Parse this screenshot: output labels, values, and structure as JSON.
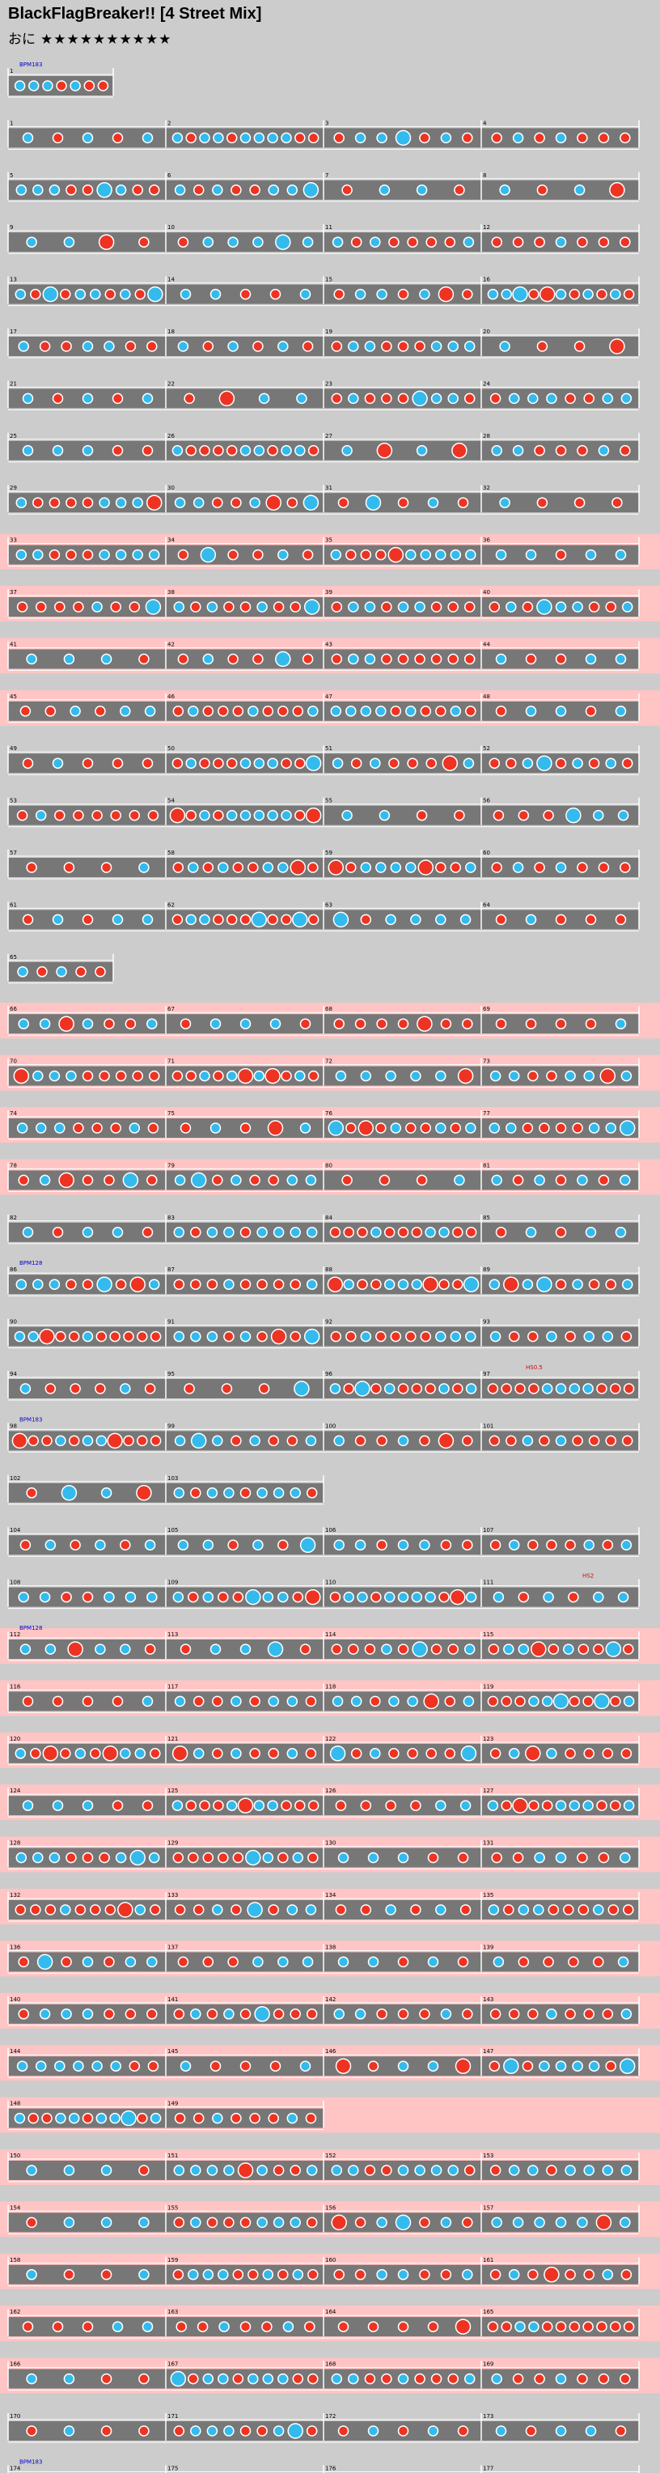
{
  "title": "BlackFlagBreaker!! [4 Street Mix]",
  "difficulty": {
    "label": "おに",
    "stars": "★★★★★★★★★★"
  },
  "colors": {
    "background": "#cccccc",
    "lane": "#777777",
    "lane_go_go": "#ffc4c4",
    "don": "#ee3322",
    "ka": "#33bbee",
    "marker_blue": "#0000cc",
    "marker_red": "#dd0000"
  },
  "bpm_markers": [
    {
      "label": "BPM183",
      "row": 0
    },
    {
      "label": "BPM128",
      "row": 23
    },
    {
      "label": "BPM183",
      "row": 26
    },
    {
      "label": "BPM128",
      "row": 30
    },
    {
      "label": "BPM183",
      "row": 46
    }
  ],
  "annotations": [
    {
      "label": "HS0.5",
      "row": 25
    },
    {
      "label": "HS2",
      "row": 29
    }
  ],
  "rows": [
    {
      "measures": [
        1
      ],
      "gogo": false,
      "short": true
    },
    {
      "measures": [
        1,
        2,
        3,
        4
      ],
      "gogo": false
    },
    {
      "measures": [
        5,
        6,
        7,
        8
      ],
      "gogo": false
    },
    {
      "measures": [
        9,
        10,
        11,
        12
      ],
      "gogo": false
    },
    {
      "measures": [
        13,
        14,
        15,
        16
      ],
      "gogo": false
    },
    {
      "measures": [
        17,
        18,
        19,
        20
      ],
      "gogo": false
    },
    {
      "measures": [
        21,
        22,
        23,
        24
      ],
      "gogo": false
    },
    {
      "measures": [
        25,
        26,
        27,
        28
      ],
      "gogo": false
    },
    {
      "measures": [
        29,
        30,
        31,
        32
      ],
      "gogo": false
    },
    {
      "measures": [
        33,
        34,
        35,
        36
      ],
      "gogo": true
    },
    {
      "measures": [
        37,
        38,
        39,
        40
      ],
      "gogo": true
    },
    {
      "measures": [
        41,
        42,
        43,
        44
      ],
      "gogo": true
    },
    {
      "measures": [
        45,
        46,
        47,
        48
      ],
      "gogo": true
    },
    {
      "measures": [
        49,
        50,
        51,
        52
      ],
      "gogo": false
    },
    {
      "measures": [
        53,
        54,
        55,
        56
      ],
      "gogo": false
    },
    {
      "measures": [
        57,
        58,
        59,
        60
      ],
      "gogo": false
    },
    {
      "measures": [
        61,
        62,
        63,
        64
      ],
      "gogo": false
    },
    {
      "measures": [
        65
      ],
      "gogo": false,
      "short": true
    },
    {
      "measures": [
        66,
        67,
        68,
        69
      ],
      "gogo": true
    },
    {
      "measures": [
        70,
        71,
        72,
        73
      ],
      "gogo": true
    },
    {
      "measures": [
        74,
        75,
        76,
        77
      ],
      "gogo": true
    },
    {
      "measures": [
        78,
        79,
        80,
        81
      ],
      "gogo": true
    },
    {
      "measures": [
        82,
        83,
        84,
        85
      ],
      "gogo": false
    },
    {
      "measures": [
        86,
        87,
        88,
        89
      ],
      "gogo": false
    },
    {
      "measures": [
        90,
        91,
        92,
        93
      ],
      "gogo": false
    },
    {
      "measures": [
        94,
        95,
        96,
        97
      ],
      "gogo": false
    },
    {
      "measures": [
        98,
        99,
        100,
        101
      ],
      "gogo": false
    },
    {
      "measures": [
        102,
        103
      ],
      "gogo": false,
      "short": true
    },
    {
      "measures": [
        104,
        105,
        106,
        107
      ],
      "gogo": false
    },
    {
      "measures": [
        108,
        109,
        110,
        111
      ],
      "gogo": false
    },
    {
      "measures": [
        112,
        113,
        114,
        115
      ],
      "gogo": true
    },
    {
      "measures": [
        116,
        117,
        118,
        119
      ],
      "gogo": true
    },
    {
      "measures": [
        120,
        121,
        122,
        123
      ],
      "gogo": true
    },
    {
      "measures": [
        124,
        125,
        126,
        127
      ],
      "gogo": true
    },
    {
      "measures": [
        128,
        129,
        130,
        131
      ],
      "gogo": true
    },
    {
      "measures": [
        132,
        133,
        134,
        135
      ],
      "gogo": true
    },
    {
      "measures": [
        136,
        137,
        138,
        139
      ],
      "gogo": true
    },
    {
      "measures": [
        140,
        141,
        142,
        143
      ],
      "gogo": true
    },
    {
      "measures": [
        144,
        145,
        146,
        147
      ],
      "gogo": true
    },
    {
      "measures": [
        148,
        149
      ],
      "gogo": true,
      "short": true
    },
    {
      "measures": [
        150,
        151,
        152,
        153
      ],
      "gogo": true
    },
    {
      "measures": [
        154,
        155,
        156,
        157
      ],
      "gogo": true
    },
    {
      "measures": [
        158,
        159,
        160,
        161
      ],
      "gogo": true
    },
    {
      "measures": [
        162,
        163,
        164,
        165
      ],
      "gogo": true
    },
    {
      "measures": [
        166,
        167,
        168,
        169
      ],
      "gogo": true
    },
    {
      "measures": [
        170,
        171,
        172,
        173
      ],
      "gogo": false
    },
    {
      "measures": [
        174,
        175,
        176,
        177
      ],
      "gogo": false
    }
  ]
}
